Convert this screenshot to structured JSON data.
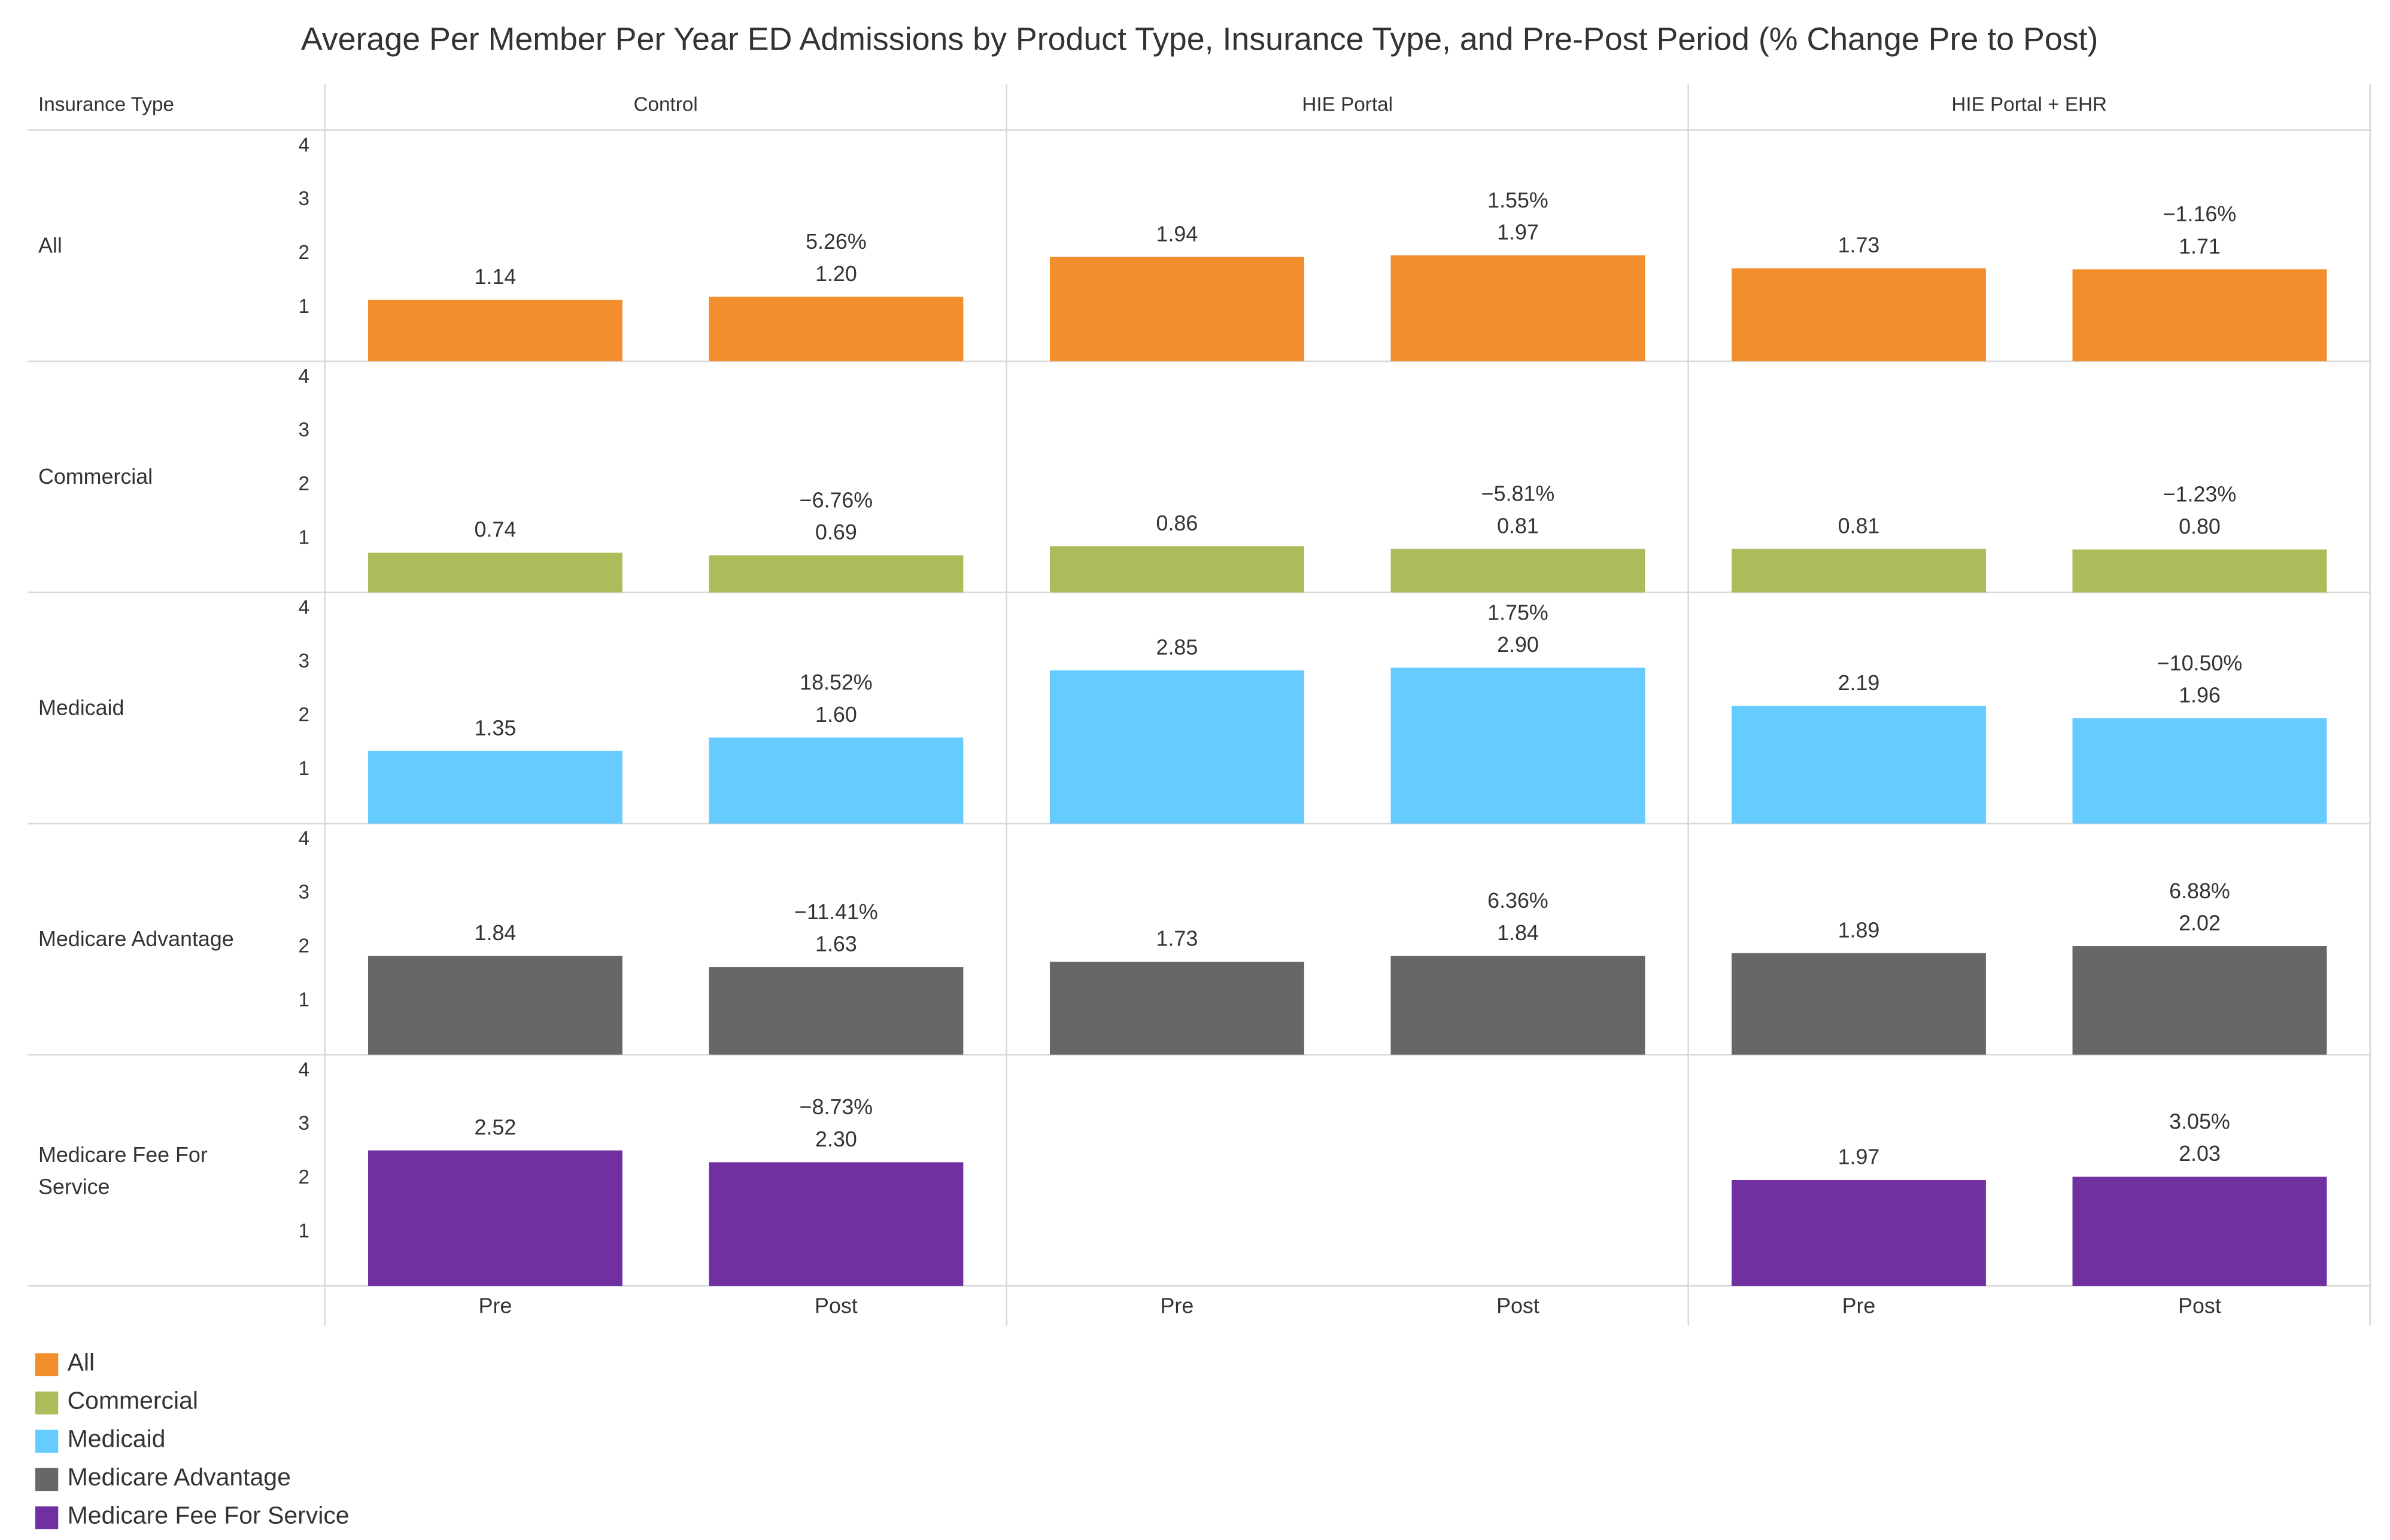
{
  "chart_data": {
    "type": "bar",
    "title": "Average Per Member Per Year ED Admissions by Product Type, Insurance Type, and Pre-Post Period (% Change Pre to Post)",
    "row_header": "Insurance Type",
    "panels": [
      "Control",
      "HIE Portal",
      "HIE Portal + EHR"
    ],
    "categories": [
      "Pre",
      "Post"
    ],
    "ylim": [
      0,
      4.3
    ],
    "yticks": [
      1,
      2,
      3,
      4
    ],
    "series": [
      {
        "name": "All",
        "color": "#f28e2b",
        "values": [
          [
            1.14,
            1.2
          ],
          [
            1.94,
            1.97
          ],
          [
            1.73,
            1.71
          ]
        ],
        "value_labels": [
          [
            "1.14",
            "1.20"
          ],
          [
            "1.94",
            "1.97"
          ],
          [
            "1.73",
            "1.71"
          ]
        ],
        "change_labels": [
          "5.26%",
          "1.55%",
          "−1.16%"
        ]
      },
      {
        "name": "Commercial",
        "color": "#adbb5a",
        "values": [
          [
            0.74,
            0.69
          ],
          [
            0.86,
            0.81
          ],
          [
            0.81,
            0.8
          ]
        ],
        "value_labels": [
          [
            "0.74",
            "0.69"
          ],
          [
            "0.86",
            "0.81"
          ],
          [
            "0.81",
            "0.80"
          ]
        ],
        "change_labels": [
          "−6.76%",
          "−5.81%",
          "−1.23%"
        ]
      },
      {
        "name": "Medicaid",
        "color": "#66ccff",
        "values": [
          [
            1.35,
            1.6
          ],
          [
            2.85,
            2.9
          ],
          [
            2.19,
            1.96
          ]
        ],
        "value_labels": [
          [
            "1.35",
            "1.60"
          ],
          [
            "2.85",
            "2.90"
          ],
          [
            "2.19",
            "1.96"
          ]
        ],
        "change_labels": [
          "18.52%",
          "1.75%",
          "−10.50%"
        ]
      },
      {
        "name": "Medicare Advantage",
        "color": "#666769",
        "values": [
          [
            1.84,
            1.63
          ],
          [
            1.73,
            1.84
          ],
          [
            1.89,
            2.02
          ]
        ],
        "value_labels": [
          [
            "1.84",
            "1.63"
          ],
          [
            "1.73",
            "1.84"
          ],
          [
            "1.89",
            "2.02"
          ]
        ],
        "change_labels": [
          "−11.41%",
          "6.36%",
          "6.88%"
        ]
      },
      {
        "name": "Medicare Fee For Service",
        "color": "#7030a0",
        "values": [
          [
            2.52,
            2.3
          ],
          [
            null,
            null
          ],
          [
            1.97,
            2.03
          ]
        ],
        "value_labels": [
          [
            "2.52",
            "2.30"
          ],
          [
            null,
            null
          ],
          [
            "1.97",
            "2.03"
          ]
        ],
        "change_labels": [
          "−8.73%",
          null,
          "3.05%"
        ]
      }
    ]
  }
}
